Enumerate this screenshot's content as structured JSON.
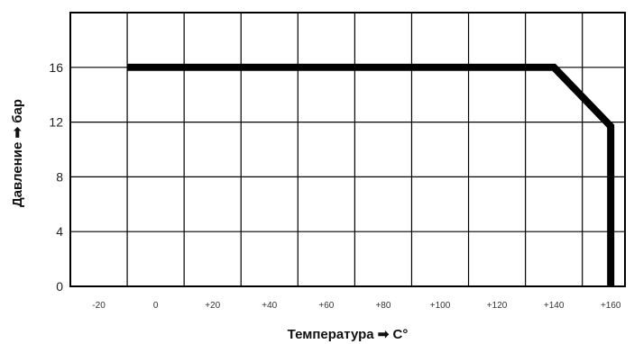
{
  "chart_data": {
    "type": "line",
    "xlabel": "Температура ➡ C°",
    "ylabel": "Давление ➡ бар",
    "xlim": [
      -30,
      165
    ],
    "ylim": [
      0,
      20
    ],
    "x_ticks": [
      {
        "value": -20,
        "label": "-20"
      },
      {
        "value": 0,
        "label": "0"
      },
      {
        "value": 20,
        "label": "+20"
      },
      {
        "value": 40,
        "label": "+40"
      },
      {
        "value": 60,
        "label": "+60"
      },
      {
        "value": 80,
        "label": "+80"
      },
      {
        "value": 100,
        "label": "+100"
      },
      {
        "value": 120,
        "label": "+120"
      },
      {
        "value": 140,
        "label": "+140"
      },
      {
        "value": 160,
        "label": "+160"
      }
    ],
    "y_ticks": [
      {
        "value": 0,
        "label": "0"
      },
      {
        "value": 4,
        "label": "4"
      },
      {
        "value": 8,
        "label": "8"
      },
      {
        "value": 12,
        "label": "12"
      },
      {
        "value": 16,
        "label": "16"
      }
    ],
    "x_grid": [
      -30,
      -10,
      10,
      30,
      50,
      70,
      90,
      110,
      130,
      150
    ],
    "y_grid": [
      4,
      8,
      12,
      16
    ],
    "grid": true,
    "series": [
      {
        "x": [
          -10,
          140,
          160,
          160
        ],
        "y": [
          16,
          16,
          11.7,
          0
        ]
      }
    ],
    "colors": {
      "line": "#000000",
      "grid": "#000000",
      "frame": "#000000"
    }
  }
}
